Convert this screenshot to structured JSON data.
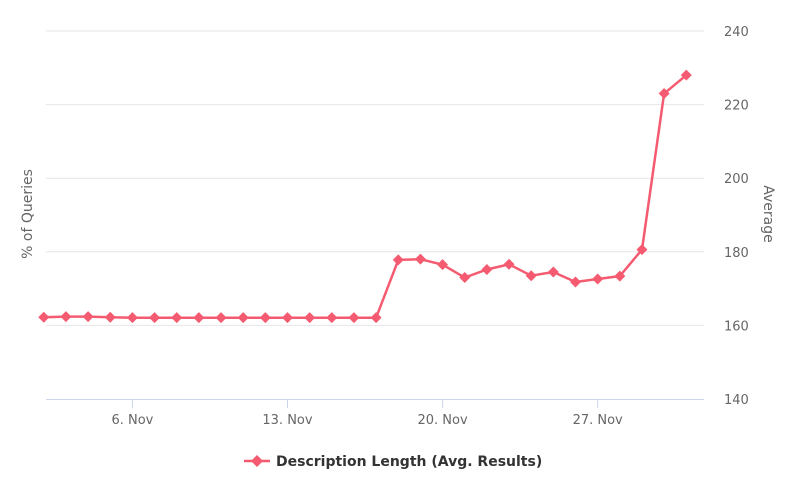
{
  "chart_data": {
    "type": "line",
    "left_axis_label": "% of Queries",
    "right_axis_label": "Average",
    "y_right_range": [
      140,
      240
    ],
    "y_right_ticks": [
      "140",
      "160",
      "180",
      "200",
      "220",
      "240"
    ],
    "x_ticks": [
      {
        "label": "6. Nov",
        "day": 6
      },
      {
        "label": "13. Nov",
        "day": 13
      },
      {
        "label": "20. Nov",
        "day": 20
      },
      {
        "label": "27. Nov",
        "day": 27
      }
    ],
    "x_range_days": [
      2.1,
      31.8
    ],
    "grid": true,
    "legend_position": "bottom-center",
    "series": [
      {
        "name": "Description Length (Avg. Results)",
        "color": "#f45b70",
        "marker": "diamond",
        "points": [
          {
            "day": 2,
            "value": 162.2
          },
          {
            "day": 3,
            "value": 162.4
          },
          {
            "day": 4,
            "value": 162.4
          },
          {
            "day": 5,
            "value": 162.2
          },
          {
            "day": 6,
            "value": 162.1
          },
          {
            "day": 7,
            "value": 162.1
          },
          {
            "day": 8,
            "value": 162.1
          },
          {
            "day": 9,
            "value": 162.1
          },
          {
            "day": 10,
            "value": 162.1
          },
          {
            "day": 11,
            "value": 162.1
          },
          {
            "day": 12,
            "value": 162.1
          },
          {
            "day": 13,
            "value": 162.1
          },
          {
            "day": 14,
            "value": 162.1
          },
          {
            "day": 15,
            "value": 162.1
          },
          {
            "day": 16,
            "value": 162.1
          },
          {
            "day": 17,
            "value": 162.1
          },
          {
            "day": 18,
            "value": 177.8
          },
          {
            "day": 19,
            "value": 178.0
          },
          {
            "day": 20,
            "value": 176.5
          },
          {
            "day": 21,
            "value": 173.0
          },
          {
            "day": 22,
            "value": 175.2
          },
          {
            "day": 23,
            "value": 176.6
          },
          {
            "day": 24,
            "value": 173.5
          },
          {
            "day": 25,
            "value": 174.5
          },
          {
            "day": 26,
            "value": 171.8
          },
          {
            "day": 27,
            "value": 172.6
          },
          {
            "day": 28,
            "value": 173.4
          },
          {
            "day": 29,
            "value": 180.6
          },
          {
            "day": 30,
            "value": 223.0
          },
          {
            "day": 31,
            "value": 228.0
          }
        ]
      }
    ]
  }
}
